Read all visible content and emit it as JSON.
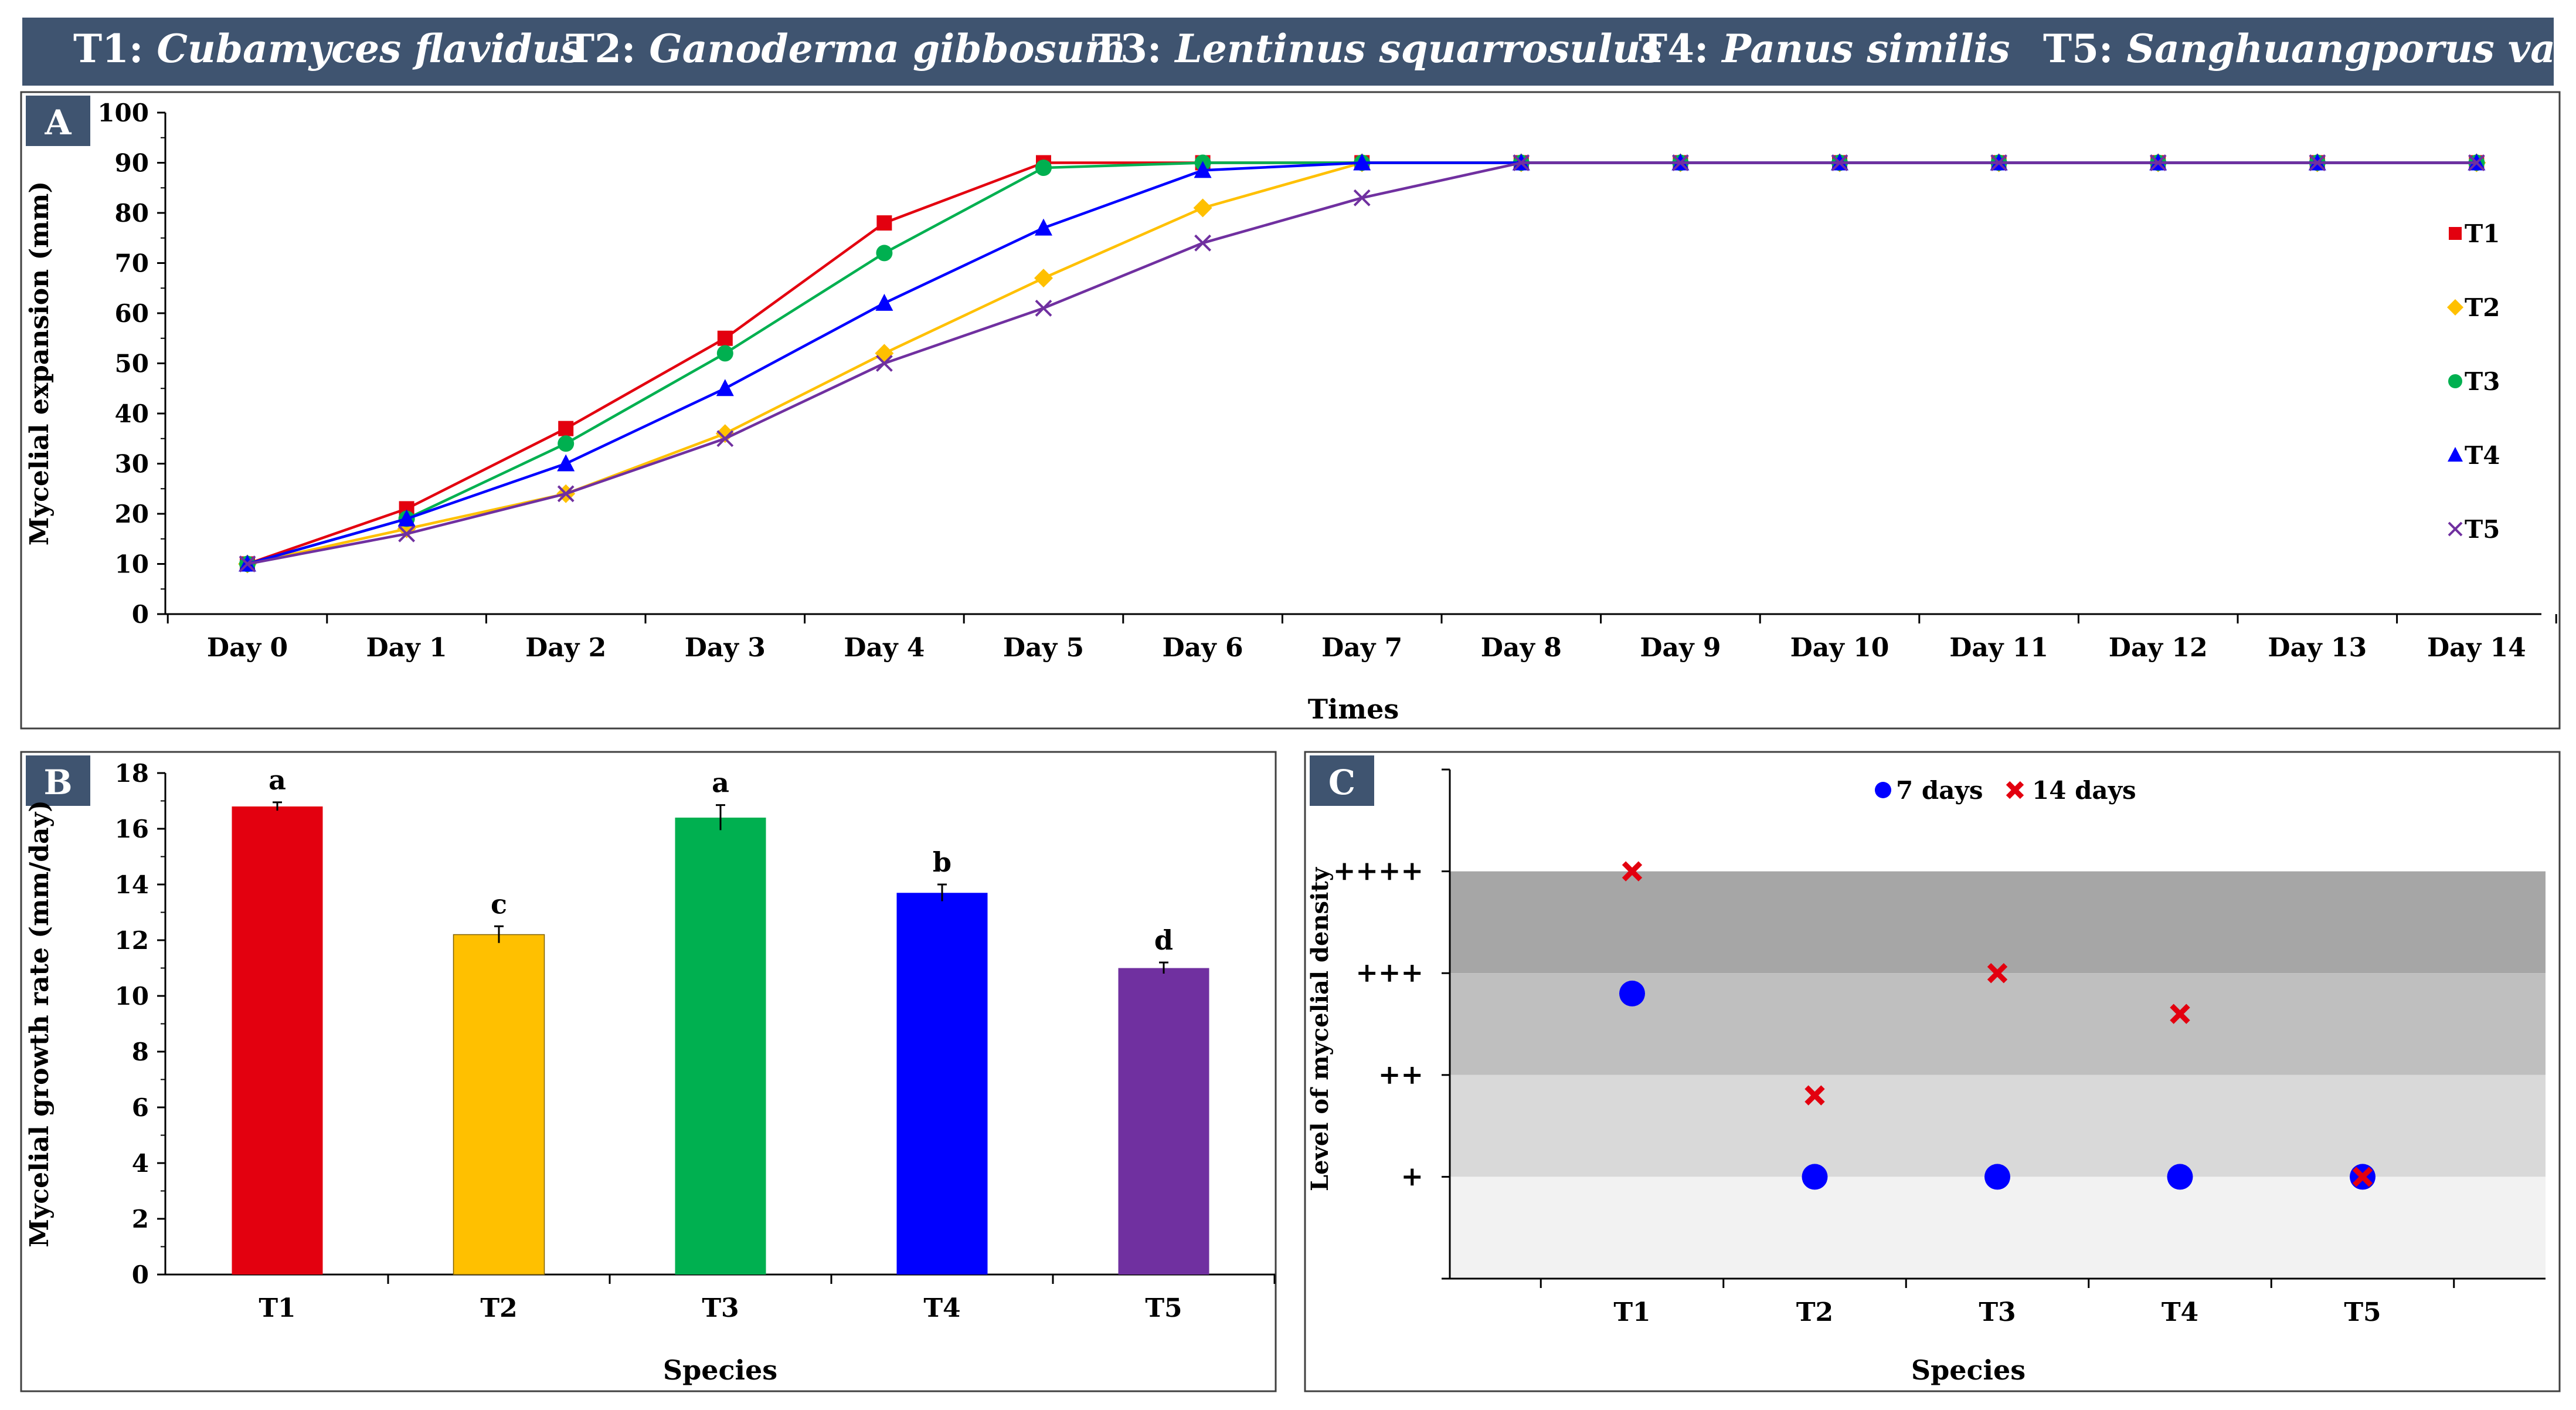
{
  "header": {
    "items": [
      {
        "code": "T1:",
        "name": "Cubamyces flavidus"
      },
      {
        "code": "T2:",
        "name": "Ganoderma gibbosum"
      },
      {
        "code": "T3:",
        "name": "Lentinus squarrosulus"
      },
      {
        "code": "T4:",
        "name": "Panus similis"
      },
      {
        "code": "T5:",
        "name": "Sanghuangporus vaninii"
      }
    ]
  },
  "colors": {
    "header_bg": "#3f5470",
    "label_bg": "#3f5470",
    "T1": "#e3000f",
    "T2": "#ffc000",
    "T3": "#00b050",
    "T4": "#0000ff",
    "T5": "#7030a0",
    "band4": "#a6a6a6",
    "band3": "#bfbfbf",
    "band2": "#d9d9d9",
    "band1": "#f2f2f2",
    "marker7": "#0000ff",
    "marker14": "#e3000f"
  },
  "chart_data": [
    {
      "type": "line",
      "panel": "A",
      "xlabel": "Times",
      "ylabel": "Mycelial expansion (mm)",
      "ylim": [
        0,
        100
      ],
      "yticks": [
        0,
        10,
        20,
        30,
        40,
        50,
        60,
        70,
        80,
        90,
        100
      ],
      "categories": [
        "Day 0",
        "Day 1",
        "Day 2",
        "Day 3",
        "Day 4",
        "Day 5",
        "Day 6",
        "Day 7",
        "Day 8",
        "Day 9",
        "Day 10",
        "Day 11",
        "Day 12",
        "Day 13",
        "Day 14"
      ],
      "legend_position": "right",
      "series": [
        {
          "name": "T1",
          "marker": "square",
          "values": [
            10,
            21,
            37,
            55,
            78,
            90,
            90,
            90,
            90,
            90,
            90,
            90,
            90,
            90,
            90
          ]
        },
        {
          "name": "T2",
          "marker": "diamond",
          "values": [
            10,
            17,
            24,
            36,
            52,
            67,
            81,
            90,
            90,
            90,
            90,
            90,
            90,
            90,
            90
          ]
        },
        {
          "name": "T3",
          "marker": "circle",
          "values": [
            10,
            19,
            34,
            52,
            72,
            89,
            90,
            90,
            90,
            90,
            90,
            90,
            90,
            90,
            90
          ]
        },
        {
          "name": "T4",
          "marker": "triangle",
          "values": [
            10,
            19,
            30,
            45,
            62,
            77,
            88.5,
            90,
            90,
            90,
            90,
            90,
            90,
            90,
            90
          ]
        },
        {
          "name": "T5",
          "marker": "x",
          "values": [
            10,
            16,
            24,
            35,
            50,
            61,
            74,
            83,
            90,
            90,
            90,
            90,
            90,
            90,
            90
          ]
        }
      ]
    },
    {
      "type": "bar",
      "panel": "B",
      "xlabel": "Species",
      "ylabel": "Mycelial growth rate (mm/day)",
      "ylim": [
        0,
        18
      ],
      "yticks": [
        0,
        2,
        4,
        6,
        8,
        10,
        12,
        14,
        16,
        18
      ],
      "categories": [
        "T1",
        "T2",
        "T3",
        "T4",
        "T5"
      ],
      "values": [
        16.8,
        12.2,
        16.4,
        13.7,
        11.0
      ],
      "errors": [
        0.15,
        0.3,
        0.45,
        0.3,
        0.2
      ],
      "letters": [
        "a",
        "c",
        "a",
        "b",
        "d"
      ]
    },
    {
      "type": "scatter",
      "panel": "C",
      "xlabel": "Species",
      "ylabel": "Level of mycelial density",
      "categories": [
        "T1",
        "T2",
        "T3",
        "T4",
        "T5"
      ],
      "ylevels": [
        "+",
        "++",
        "+++",
        "++++"
      ],
      "ylim": [
        0,
        5
      ],
      "legend_position": "top-center",
      "series": [
        {
          "name": "7 days",
          "marker": "circle",
          "values": [
            2.8,
            1,
            1,
            1,
            1
          ]
        },
        {
          "name": "14 days",
          "marker": "x",
          "values": [
            4,
            1.8,
            3,
            2.6,
            1
          ]
        }
      ]
    }
  ]
}
